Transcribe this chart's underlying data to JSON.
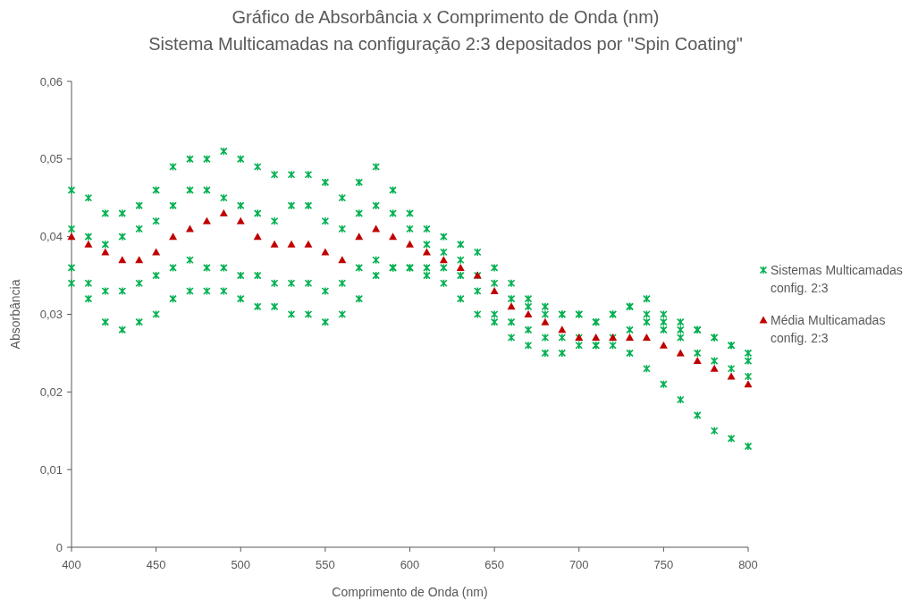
{
  "chart_data": {
    "type": "scatter",
    "title": "Gráfico de Absorbância x Comprimento de Onda (nm)",
    "subtitle": "Sistema Multicamadas na configuração 2:3 depositados por \"Spin Coating\"",
    "xlabel": "Comprimento de Onda (nm)",
    "ylabel": "Absorbância",
    "xlim": [
      400,
      800
    ],
    "xticks": [
      400,
      450,
      500,
      550,
      600,
      650,
      700,
      750,
      800
    ],
    "ylim": [
      0,
      0.06
    ],
    "yticks": [
      0,
      {
        "value": 0.01,
        "label": "0,01"
      },
      {
        "value": 0.02,
        "label": "0,02"
      },
      {
        "value": 0.03,
        "label": "0,03"
      },
      {
        "value": 0.04,
        "label": "0,04"
      },
      {
        "value": 0.05,
        "label": "0,05"
      },
      {
        "value": 0.06,
        "label": "0,06"
      }
    ],
    "grid": false,
    "legend": "right",
    "x": [
      400,
      410,
      420,
      430,
      440,
      450,
      460,
      470,
      480,
      490,
      500,
      510,
      520,
      530,
      540,
      550,
      560,
      570,
      580,
      590,
      600,
      610,
      620,
      630,
      640,
      650,
      660,
      670,
      680,
      690,
      700,
      710,
      720,
      730,
      740,
      750,
      760,
      770,
      780,
      790,
      800
    ],
    "series": [
      {
        "name": "Sistemas Multicamadas config. 2:3",
        "color": "#00b050",
        "marker": "cross",
        "x": [
          400,
          410,
          420,
          430,
          440,
          450,
          460,
          470,
          480,
          490,
          500,
          510,
          520,
          530,
          540,
          550,
          560,
          570,
          580,
          590,
          600,
          610,
          620,
          630,
          640,
          650,
          660,
          670,
          680,
          690,
          700,
          710,
          720,
          730,
          740,
          750,
          760,
          770,
          780,
          790,
          800,
          400,
          410,
          420,
          430,
          440,
          450,
          460,
          470,
          480,
          490,
          500,
          510,
          520,
          530,
          540,
          550,
          560,
          570,
          580,
          590,
          600,
          610,
          620,
          630,
          640,
          650,
          660,
          670,
          680,
          690,
          700,
          710,
          720,
          730,
          740,
          750,
          760,
          770,
          780,
          790,
          800,
          400,
          410,
          420,
          430,
          440,
          450,
          460,
          470,
          480,
          490,
          500,
          510,
          520,
          530,
          540,
          550,
          560,
          570,
          580,
          590,
          600,
          610,
          620,
          630,
          640,
          650,
          660,
          670,
          680,
          690,
          700,
          710,
          720,
          730,
          740,
          750,
          760,
          770,
          780,
          790,
          800,
          400,
          410,
          420,
          430,
          440,
          450,
          460,
          470,
          480,
          490,
          500,
          510,
          520,
          530,
          540,
          550,
          560,
          570,
          580,
          590,
          600,
          610,
          620,
          630,
          640,
          650,
          660,
          670,
          680,
          690,
          700,
          710,
          720,
          730,
          740,
          750,
          760,
          770,
          780,
          790,
          800
        ],
        "values": [
          0.046,
          0.045,
          0.043,
          0.043,
          0.044,
          0.046,
          0.049,
          0.05,
          0.05,
          0.051,
          0.05,
          0.049,
          0.048,
          0.048,
          0.048,
          0.047,
          0.045,
          0.047,
          0.049,
          0.046,
          0.043,
          0.041,
          0.04,
          0.039,
          0.038,
          0.036,
          0.034,
          0.032,
          0.031,
          0.03,
          0.03,
          0.029,
          0.03,
          0.031,
          0.032,
          0.03,
          0.029,
          0.028,
          0.027,
          0.026,
          0.025,
          0.041,
          0.04,
          0.039,
          0.04,
          0.041,
          0.042,
          0.044,
          0.046,
          0.046,
          0.045,
          0.044,
          0.043,
          0.042,
          0.044,
          0.044,
          0.042,
          0.041,
          0.043,
          0.044,
          0.043,
          0.041,
          0.039,
          0.038,
          0.037,
          0.035,
          0.034,
          0.032,
          0.031,
          0.03,
          0.03,
          0.03,
          0.029,
          0.03,
          0.031,
          0.03,
          0.029,
          0.028,
          0.028,
          0.027,
          0.026,
          0.024,
          0.036,
          0.034,
          0.033,
          0.033,
          0.034,
          0.035,
          0.036,
          0.037,
          0.036,
          0.036,
          0.035,
          0.035,
          0.034,
          0.034,
          0.034,
          0.033,
          0.034,
          0.036,
          0.037,
          0.036,
          0.036,
          0.036,
          0.036,
          0.035,
          0.033,
          0.03,
          0.029,
          0.028,
          0.027,
          0.027,
          0.027,
          0.026,
          0.026,
          0.025,
          0.023,
          0.021,
          0.019,
          0.017,
          0.015,
          0.014,
          0.013,
          0.034,
          0.032,
          0.029,
          0.028,
          0.029,
          0.03,
          0.032,
          0.033,
          0.033,
          0.033,
          0.032,
          0.031,
          0.031,
          0.03,
          0.03,
          0.029,
          0.03,
          0.032,
          0.035,
          0.036,
          0.036,
          0.035,
          0.034,
          0.032,
          0.03,
          0.029,
          0.027,
          0.026,
          0.025,
          0.025,
          0.026,
          0.026,
          0.027,
          0.028,
          0.029,
          0.028,
          0.027,
          0.025,
          0.024,
          0.023,
          0.022
        ]
      },
      {
        "name": "Média Multicamadas config. 2:3",
        "color": "#c00000",
        "marker": "triangle",
        "values": [
          0.04,
          0.039,
          0.038,
          0.037,
          0.037,
          0.038,
          0.04,
          0.041,
          0.042,
          0.043,
          0.042,
          0.04,
          0.039,
          0.039,
          0.039,
          0.038,
          0.037,
          0.04,
          0.041,
          0.04,
          0.039,
          0.038,
          0.037,
          0.036,
          0.035,
          0.033,
          0.031,
          0.03,
          0.029,
          0.028,
          0.027,
          0.027,
          0.027,
          0.027,
          0.027,
          0.026,
          0.025,
          0.024,
          0.023,
          0.022,
          0.021
        ]
      }
    ]
  }
}
